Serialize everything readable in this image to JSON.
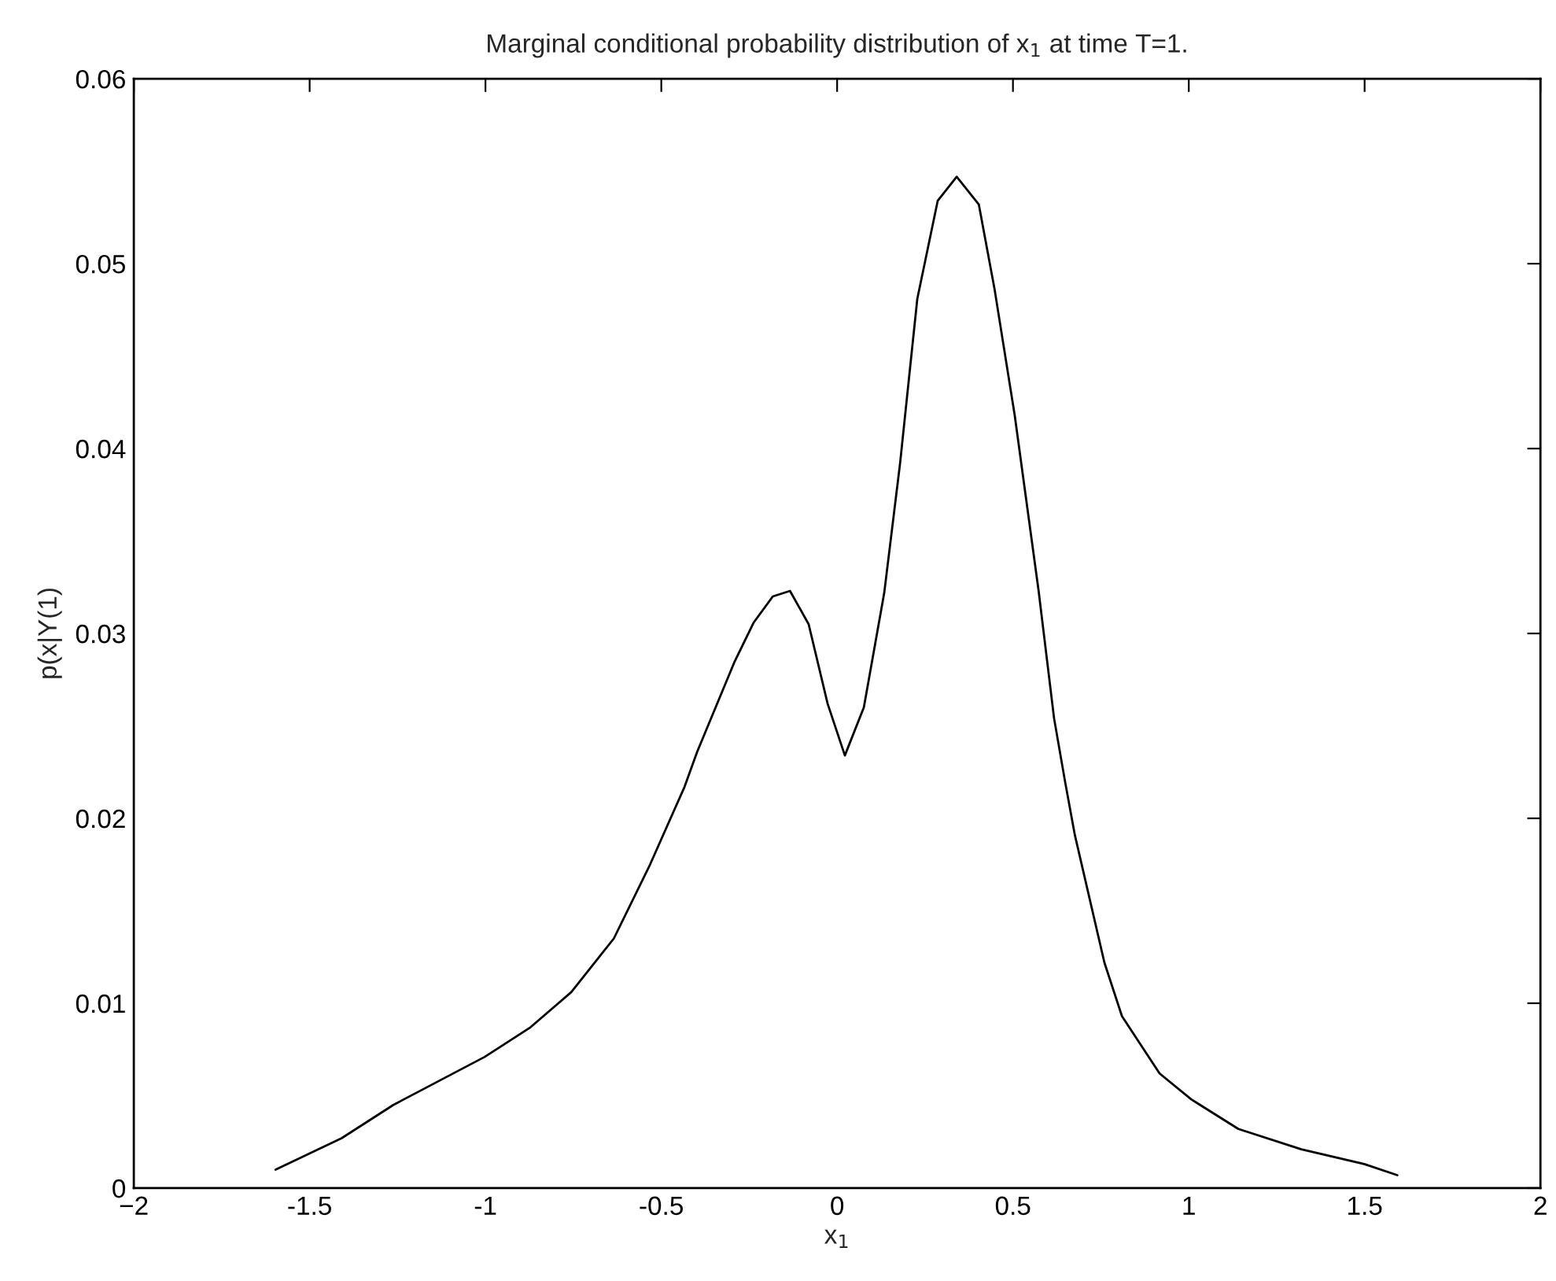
{
  "chart_data": {
    "type": "line",
    "title": "Marginal conditional probability distribution of x$_{1}$ at time T=1.",
    "xlabel": "x$_{1}$",
    "ylabel": "p(x|Y(1)",
    "x": [
      -1.597,
      -1.409,
      -1.262,
      -1.002,
      -0.872,
      -0.756,
      -0.635,
      -0.532,
      -0.434,
      -0.398,
      -0.291,
      -0.237,
      -0.183,
      -0.134,
      -0.081,
      -0.027,
      0.022,
      0.076,
      0.134,
      0.179,
      0.228,
      0.286,
      0.34,
      0.403,
      0.447,
      0.505,
      0.573,
      0.617,
      0.649,
      0.676,
      0.76,
      0.81,
      0.917,
      1.007,
      1.141,
      1.32,
      1.499,
      1.593
    ],
    "series": [
      {
        "color": "#000000",
        "values": [
          0.001,
          0.0027,
          0.0045,
          0.0071,
          0.0087,
          0.0106,
          0.0135,
          0.0175,
          0.0217,
          0.0236,
          0.0285,
          0.0306,
          0.032,
          0.0323,
          0.0305,
          0.0262,
          0.0234,
          0.026,
          0.0322,
          0.0392,
          0.0481,
          0.0534,
          0.0547,
          0.0532,
          0.0487,
          0.0418,
          0.0323,
          0.0254,
          0.0219,
          0.0191,
          0.0122,
          0.0093,
          0.0062,
          0.0048,
          0.0032,
          0.0021,
          0.0013,
          0.0007
        ]
      }
    ],
    "xlim": [
      -2,
      2
    ],
    "xticks": [
      {
        "value": -2,
        "label": "−2"
      },
      -1.5,
      -1,
      -0.5,
      0,
      0.5,
      1,
      1.5,
      2
    ],
    "ylim": [
      0,
      0.06
    ],
    "yticks": [
      0,
      0.01,
      0.02,
      0.03,
      0.04,
      0.05,
      0.06
    ],
    "grid": false,
    "marker": "none",
    "line_style": "solid"
  }
}
